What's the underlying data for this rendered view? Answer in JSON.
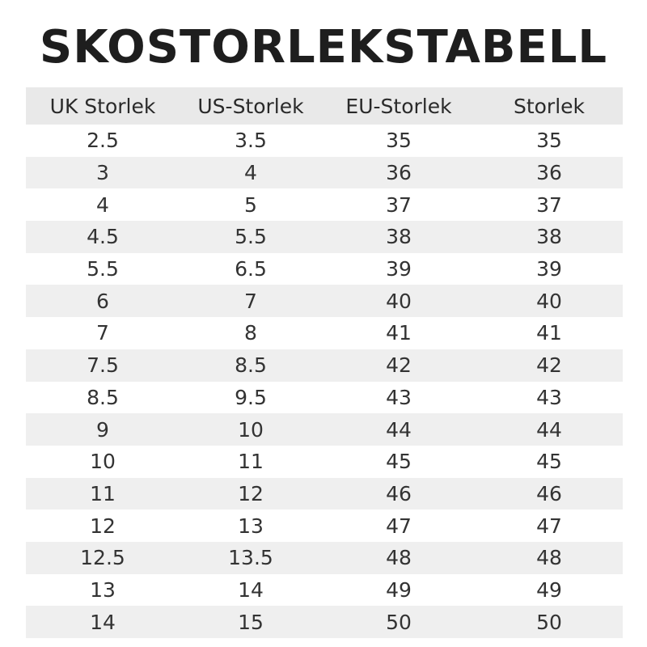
{
  "title": "SKOSTORLEKSTABELL",
  "columns": [
    "UK Storlek",
    "US-Storlek",
    "EU-Storlek",
    "Storlek"
  ],
  "rows": [
    [
      "2.5",
      "3.5",
      "35",
      "35"
    ],
    [
      "3",
      "4",
      "36",
      "36"
    ],
    [
      "4",
      "5",
      "37",
      "37"
    ],
    [
      "4.5",
      "5.5",
      "38",
      "38"
    ],
    [
      "5.5",
      "6.5",
      "39",
      "39"
    ],
    [
      "6",
      "7",
      "40",
      "40"
    ],
    [
      "7",
      "8",
      "41",
      "41"
    ],
    [
      "7.5",
      "8.5",
      "42",
      "42"
    ],
    [
      "8.5",
      "9.5",
      "43",
      "43"
    ],
    [
      "9",
      "10",
      "44",
      "44"
    ],
    [
      "10",
      "11",
      "45",
      "45"
    ],
    [
      "11",
      "12",
      "46",
      "46"
    ],
    [
      "12",
      "13",
      "47",
      "47"
    ],
    [
      "12.5",
      "13.5",
      "48",
      "48"
    ],
    [
      "13",
      "14",
      "49",
      "49"
    ],
    [
      "14",
      "15",
      "50",
      "50"
    ]
  ],
  "colors": {
    "header_bg": "#e9e9e9",
    "stripe_bg": "#efefef",
    "text": "#222222"
  }
}
